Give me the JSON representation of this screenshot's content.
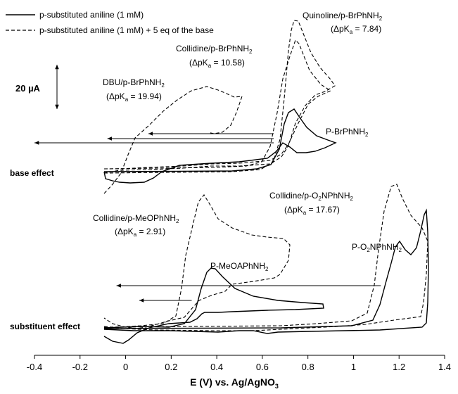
{
  "chart_data": {
    "type": "line",
    "xlabel": "E (V) vs. Ag/AgNO",
    "xlabel_sub": "3",
    "xlim": [
      -0.4,
      1.4
    ],
    "xticks": [
      "-0.4",
      "-0.2",
      "0",
      "0.2",
      "0.4",
      "0.6",
      "0.8",
      "1",
      "1.2",
      "1.4"
    ],
    "legend": {
      "placement": "top-left",
      "items": [
        {
          "style": "solid",
          "text": "p-substituted aniline (1 mM)"
        },
        {
          "style": "dashed",
          "text": "p-substituted aniline (1 mM) + 5 eq of the base"
        }
      ]
    },
    "scale_bar": {
      "label": "20 µA",
      "value_uA": 20
    },
    "panel_labels": [
      "base effect",
      "substituent effect"
    ],
    "annotations": [
      {
        "name": "quinoline",
        "main": "Quinoline/p-BrPhNH",
        "sub": "2",
        "dpka": "(ΔpK",
        "dpka_sub": "a",
        "dpka_val": " = 7.84)"
      },
      {
        "name": "collidine-br",
        "main": "Collidine/p-BrPhNH",
        "sub": "2",
        "dpka": "(ΔpK",
        "dpka_sub": "a",
        "dpka_val": " = 10.58)"
      },
      {
        "name": "dbu",
        "main": "DBU/p-BrPhNH",
        "sub": "2",
        "dpka": "(ΔpK",
        "dpka_sub": "a",
        "dpka_val": " = 19.94)"
      },
      {
        "name": "collidine-no2",
        "main": "Collidine/p-O",
        "sub": "2",
        "main2": "NPhNH",
        "sub2": "2",
        "dpka": "(ΔpK",
        "dpka_sub": "a",
        "dpka_val": " = 17.67)"
      },
      {
        "name": "collidine-meo",
        "main": "Collidine/p-MeOPhNH",
        "sub": "2",
        "dpka": "(ΔpK",
        "dpka_sub": "a",
        "dpka_val": " = 2.91)"
      }
    ],
    "curve_labels": [
      {
        "name": "br",
        "main": "P-BrPhNH",
        "sub": "2"
      },
      {
        "name": "meo",
        "main": "P-MeOAPhNH",
        "sub": "2"
      },
      {
        "name": "no2",
        "main": "P-O",
        "sub": "2",
        "main2": "NPhNH",
        "sub2": "2"
      }
    ],
    "peak_shift_arrows": [
      {
        "from_V": 0.65,
        "to_V": -0.4
      },
      {
        "from_V": 0.65,
        "to_V": -0.08
      },
      {
        "from_V": 0.65,
        "to_V": 0.1
      },
      {
        "from_V": 1.12,
        "to_V": -0.04
      },
      {
        "from_V": 0.29,
        "to_V": 0.06
      }
    ]
  }
}
